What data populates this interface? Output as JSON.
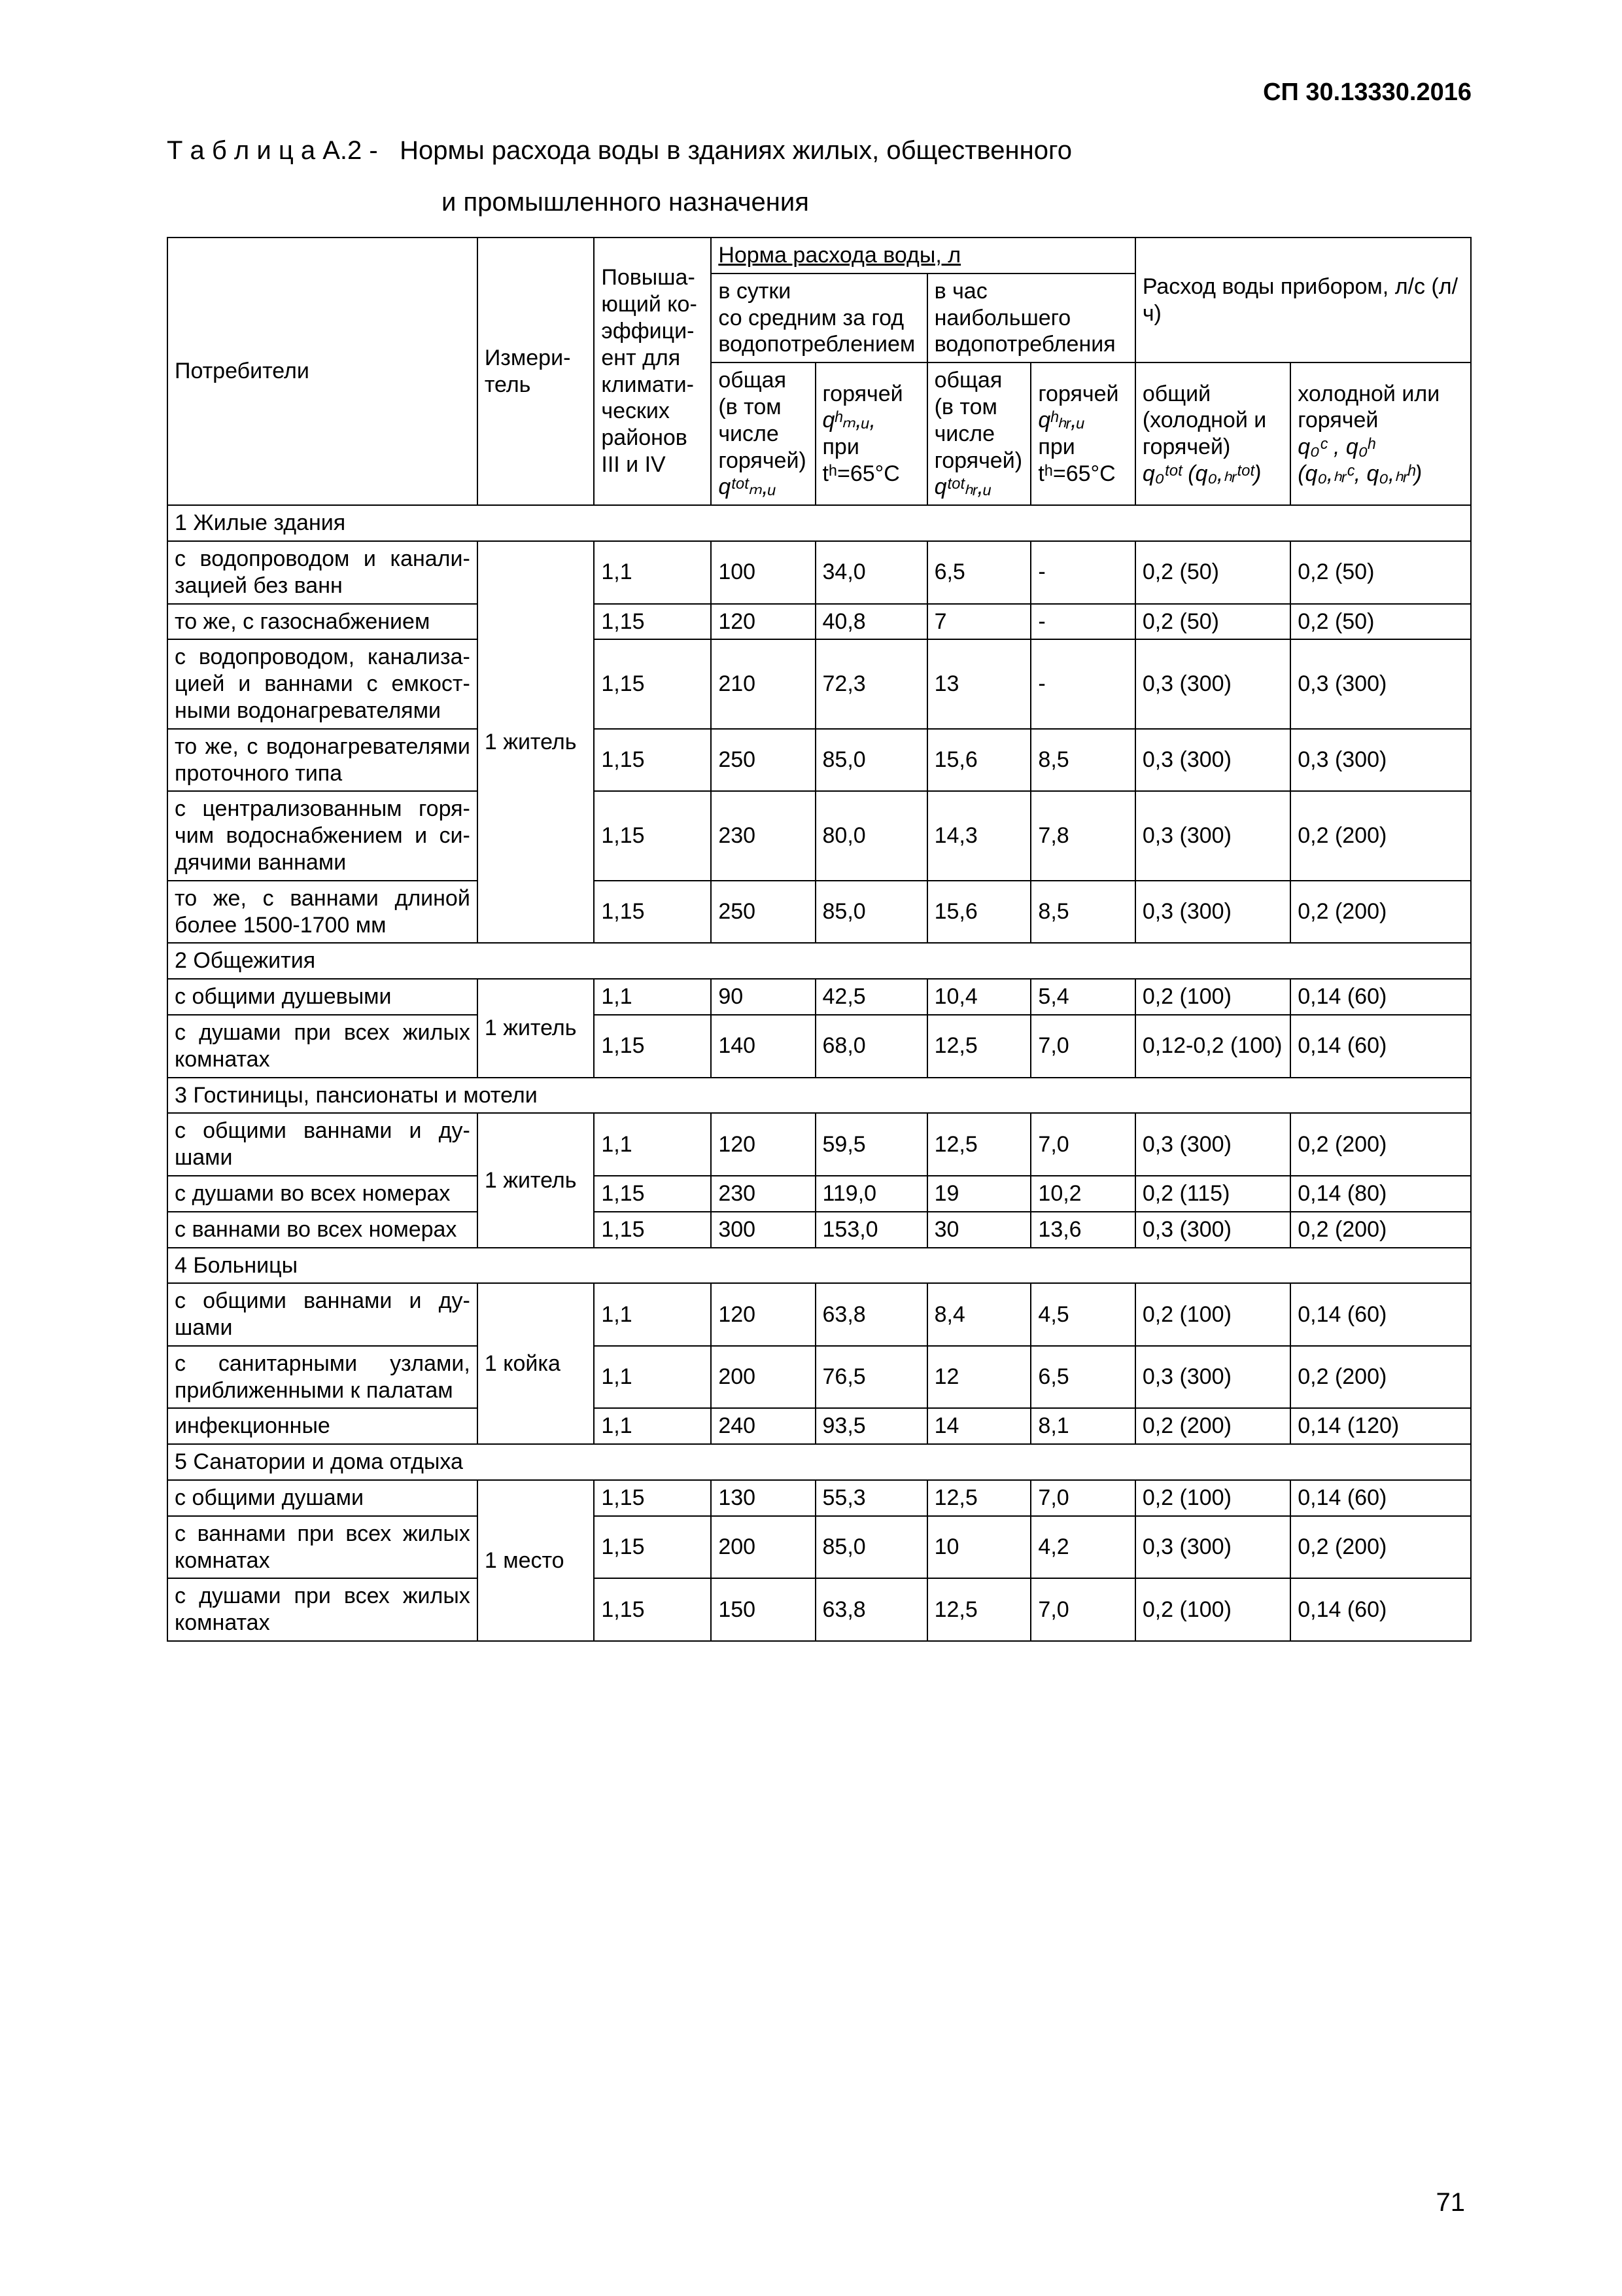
{
  "doc_code": "СП 30.13330.2016",
  "page_number": "71",
  "title": {
    "label": "Т а б л и ц а  А.2",
    "sep": "-",
    "text1": "Нормы  расхода  воды  в  зданиях  жилых,  общественного",
    "text2": "и промышленного назначения"
  },
  "columns": {
    "consumer": "Потребители",
    "unit": "Измери­тель",
    "coef": "Повыша­ющий ко­эффици­ент для климати­ческих районов III и IV",
    "norm_header": "Норма расхода воды, л",
    "day_header": "в сутки\nсо средним за год водопотреблением",
    "hour_header": "в час\nнаибольшего\nводопотребления",
    "device_header": "Расход воды прибором, л/с (л/ч)",
    "day_total_hdr": "общая (в том числе го­рячей)",
    "day_total_sym": "qᵗᵒᵗₘ,ᵤ",
    "day_hot_hdr": "горячей",
    "day_hot_sym": "qʰₘ,ᵤ,",
    "day_hot_t": "при tʰ=65°C",
    "hr_total_hdr": "общая (в том числе го­рячей)",
    "hr_total_sym": "qᵗᵒᵗₕᵣ,ᵤ",
    "hr_hot_hdr": "горячей",
    "hr_hot_sym": "qʰₕᵣ,ᵤ",
    "hr_hot_t": "при tʰ=65°C",
    "dev_total_hdr": "общий (холодной и горячей)",
    "dev_total_sym": "q₀ᵗᵒᵗ (q₀,ₕᵣᵗᵒᵗ)",
    "dev_cold_hdr": "холодной или горячей",
    "dev_cold_sym1": "q₀ᶜ , q₀ʰ",
    "dev_cold_sym2": "(q₀,ₕᵣᶜ, q₀,ₕᵣʰ)"
  },
  "sections": [
    {
      "title": "1 Жилые здания",
      "unit": "1 житель",
      "rows": [
        {
          "name": "с водопроводом и канали­зацией без ванн",
          "coef": "1,1",
          "dt": "100",
          "dh": "34,0",
          "ht": "6,5",
          "hh": "-",
          "d1": "0,2 (50)",
          "d2": "0,2 (50)"
        },
        {
          "name": "то же, с газоснабжением",
          "coef": "1,15",
          "dt": "120",
          "dh": "40,8",
          "ht": "7",
          "hh": "-",
          "d1": "0,2 (50)",
          "d2": "0,2 (50)"
        },
        {
          "name": "с водопроводом, канализа­цией и ваннами с емкост­ными водонагревателями",
          "coef": "1,15",
          "dt": "210",
          "dh": "72,3",
          "ht": "13",
          "hh": "-",
          "d1": "0,3 (300)",
          "d2": "0,3 (300)"
        },
        {
          "name": "то же, с водонагревате­лями проточного типа",
          "coef": "1,15",
          "dt": "250",
          "dh": "85,0",
          "ht": "15,6",
          "hh": "8,5",
          "d1": "0,3 (300)",
          "d2": "0,3 (300)"
        },
        {
          "name": "с централизованным горя­чим водоснабжением и си­дячими ваннами",
          "coef": "1,15",
          "dt": "230",
          "dh": "80,0",
          "ht": "14,3",
          "hh": "7,8",
          "d1": "0,3 (300)",
          "d2": "0,2 (200)"
        },
        {
          "name": "то же, с ваннами длиной более 1500-1700 мм",
          "coef": "1,15",
          "dt": "250",
          "dh": "85,0",
          "ht": "15,6",
          "hh": "8,5",
          "d1": "0,3 (300)",
          "d2": "0,2 (200)"
        }
      ]
    },
    {
      "title": "2 Общежития",
      "unit": "1 житель",
      "rows": [
        {
          "name": "с общими душевыми",
          "coef": "1,1",
          "dt": "90",
          "dh": "42,5",
          "ht": "10,4",
          "hh": "5,4",
          "d1": "0,2 (100)",
          "d2": "0,14 (60)"
        },
        {
          "name": "с душами при всех жилых комнатах",
          "coef": "1,15",
          "dt": "140",
          "dh": "68,0",
          "ht": "12,5",
          "hh": "7,0",
          "d1": "0,12-0,2 (100)",
          "d2": "0,14 (60)"
        }
      ]
    },
    {
      "title": "3 Гостиницы, пансионаты и мотели",
      "unit": "1 житель",
      "rows": [
        {
          "name": "с общими ваннами и ду­шами",
          "coef": "1,1",
          "dt": "120",
          "dh": "59,5",
          "ht": "12,5",
          "hh": "7,0",
          "d1": "0,3 (300)",
          "d2": "0,2 (200)"
        },
        {
          "name": "с душами во всех номерах",
          "coef": "1,15",
          "dt": "230",
          "dh": "119,0",
          "ht": "19",
          "hh": "10,2",
          "d1": "0,2 (115)",
          "d2": "0,14 (80)"
        },
        {
          "name": "с ваннами во всех номерах",
          "coef": "1,15",
          "dt": "300",
          "dh": "153,0",
          "ht": "30",
          "hh": "13,6",
          "d1": "0,3 (300)",
          "d2": "0,2 (200)"
        }
      ]
    },
    {
      "title": "4  Больницы",
      "unit": "1 койка",
      "rows": [
        {
          "name": "с общими ваннами и ду­шами",
          "coef": "1,1",
          "dt": "120",
          "dh": "63,8",
          "ht": "8,4",
          "hh": "4,5",
          "d1": "0,2 (100)",
          "d2": "0,14 (60)"
        },
        {
          "name": "с санитарными узлами, приближенными к палатам",
          "coef": "1,1",
          "dt": "200",
          "dh": "76,5",
          "ht": "12",
          "hh": "6,5",
          "d1": "0,3 (300)",
          "d2": "0,2 (200)"
        },
        {
          "name": "инфекционные",
          "coef": "1,1",
          "dt": "240",
          "dh": "93,5",
          "ht": "14",
          "hh": "8,1",
          "d1": "0,2 (200)",
          "d2": "0,14 (120)"
        }
      ]
    },
    {
      "title": "5  Санатории и дома отдыха",
      "unit": "1 место",
      "rows": [
        {
          "name": "с общими душами",
          "coef": "1,15",
          "dt": "130",
          "dh": "55,3",
          "ht": "12,5",
          "hh": "7,0",
          "d1": "0,2 (100)",
          "d2": "0,14 (60)"
        },
        {
          "name": "с ваннами при всех жилых комнатах",
          "coef": "1,15",
          "dt": "200",
          "dh": "85,0",
          "ht": "10",
          "hh": "4,2",
          "d1": "0,3 (300)",
          "d2": "0,2 (200)"
        },
        {
          "name": "с душами при всех жилых комнатах",
          "coef": "1,15",
          "dt": "150",
          "dh": "63,8",
          "ht": "12,5",
          "hh": "7,0",
          "d1": "0,2 (100)",
          "d2": "0,14 (60)"
        }
      ]
    }
  ],
  "col_widths_pct": [
    24,
    9,
    9,
    8,
    8,
    8,
    8,
    12,
    14
  ]
}
